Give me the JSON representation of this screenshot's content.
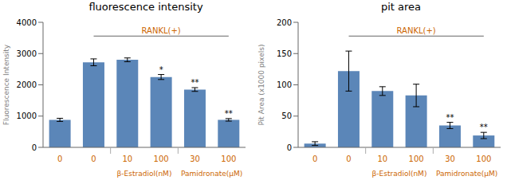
{
  "chart_data": [
    {
      "type": "bar",
      "title": "fluorescence intensity",
      "ylabel": "Fluorescence Intensity",
      "categories": [
        "0",
        "0",
        "10",
        "100",
        "30",
        "100"
      ],
      "values": [
        880,
        2720,
        2800,
        2250,
        1850,
        880
      ],
      "errors": [
        50,
        110,
        60,
        80,
        60,
        40
      ],
      "stars": [
        null,
        null,
        null,
        "*",
        "**",
        "**"
      ],
      "star_color": "#000000",
      "ylim": [
        0,
        4000
      ],
      "yticks": [
        0,
        1000,
        2000,
        3000,
        4000
      ],
      "color": "#5b86b8",
      "tick_label_color": "#cc6600",
      "separator_color": "#aaaaaa",
      "group_labels": [
        {
          "text": "β-Estradiol(nM)",
          "color": "#cc6600",
          "span": [
            2,
            3
          ]
        },
        {
          "text": "Pamidronate(μM)",
          "color": "#cc6600",
          "span": [
            4,
            5
          ]
        }
      ],
      "bracket": {
        "text": "RANKL(+)",
        "color": "#cc6600",
        "span": [
          1,
          5
        ]
      },
      "grid": false
    },
    {
      "type": "bar",
      "title": "pit area",
      "ylabel": "Pit Area (x1000 pixels)",
      "categories": [
        "0",
        "0",
        "10",
        "100",
        "30",
        "100"
      ],
      "values": [
        6,
        122,
        90,
        83,
        35,
        19
      ],
      "errors": [
        3,
        32,
        7,
        18,
        5,
        5
      ],
      "stars": [
        null,
        null,
        null,
        null,
        "**",
        "**"
      ],
      "star_color": "#000000",
      "ylim": [
        0,
        200
      ],
      "yticks": [
        0,
        50,
        100,
        150,
        200
      ],
      "color": "#5b86b8",
      "tick_label_color": "#cc6600",
      "separator_color": "#aaaaaa",
      "group_labels": [
        {
          "text": "β-Estradiol(nM)",
          "color": "#cc6600",
          "span": [
            2,
            3
          ]
        },
        {
          "text": "Pamidronate(μM)",
          "color": "#cc6600",
          "span": [
            4,
            5
          ]
        }
      ],
      "bracket": {
        "text": "RANKL(+)",
        "color": "#cc6600",
        "span": [
          1,
          5
        ]
      },
      "grid": false
    }
  ]
}
